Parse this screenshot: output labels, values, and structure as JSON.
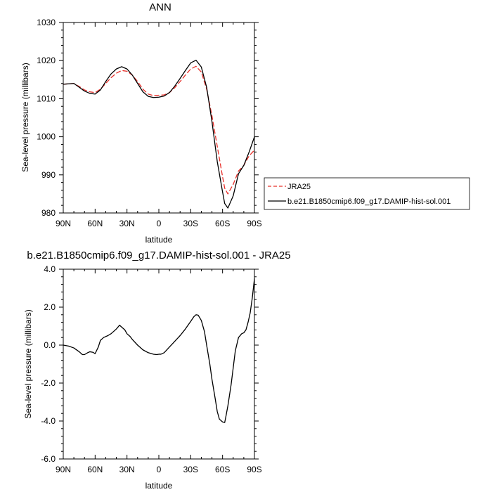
{
  "chart_data": [
    {
      "type": "line",
      "title": "ANN",
      "xlabel": "latitude",
      "ylabel": "Sea-level pressure (millibars)",
      "ylim": [
        980,
        1030
      ],
      "yticks": [
        980,
        990,
        1000,
        1010,
        1020,
        1030
      ],
      "ytick_labels": [
        "980",
        "990",
        "1000",
        "1010",
        "1020",
        "1030"
      ],
      "xlim": [
        90,
        -90
      ],
      "xticks": [
        90,
        60,
        30,
        0,
        -30,
        -60,
        -90
      ],
      "xtick_labels": [
        "90N",
        "60N",
        "30N",
        "0",
        "30S",
        "60S",
        "90S"
      ],
      "grid": false,
      "legend_position": "right",
      "series": [
        {
          "name": "JRA25",
          "color": "#e8302a",
          "dash": "dashed",
          "x": [
            90,
            80,
            75,
            70,
            65,
            60,
            55,
            50,
            45,
            40,
            35,
            30,
            25,
            20,
            15,
            10,
            5,
            0,
            -5,
            -10,
            -15,
            -20,
            -25,
            -30,
            -35,
            -40,
            -45,
            -50,
            -55,
            -60,
            -62,
            -65,
            -70,
            -75,
            -80,
            -85,
            -90
          ],
          "values": [
            1013.8,
            1014.0,
            1013.2,
            1012.3,
            1011.8,
            1011.6,
            1012.5,
            1014.0,
            1015.5,
            1016.7,
            1017.4,
            1017.2,
            1016.2,
            1014.5,
            1012.5,
            1011.2,
            1010.8,
            1010.9,
            1011.0,
            1011.6,
            1012.9,
            1014.5,
            1016.2,
            1017.8,
            1018.5,
            1017.0,
            1012.5,
            1005.5,
            997.5,
            989.5,
            986.5,
            985.0,
            987.5,
            991.0,
            992.5,
            995.0,
            996.5
          ]
        },
        {
          "name": "b.e21.B1850cmip6.f09_g17.DAMIP-hist-sol.001",
          "color": "#000000",
          "dash": "solid",
          "x": [
            90,
            80,
            75,
            70,
            65,
            60,
            55,
            50,
            45,
            40,
            35,
            30,
            25,
            20,
            15,
            10,
            5,
            0,
            -5,
            -10,
            -15,
            -20,
            -25,
            -30,
            -35,
            -40,
            -45,
            -50,
            -55,
            -60,
            -62,
            -65,
            -70,
            -75,
            -80,
            -85,
            -90
          ],
          "values": [
            1013.8,
            1014.0,
            1013.0,
            1012.0,
            1011.4,
            1011.2,
            1012.3,
            1014.5,
            1016.5,
            1017.8,
            1018.4,
            1017.8,
            1016.2,
            1014.0,
            1011.8,
            1010.6,
            1010.3,
            1010.4,
            1010.7,
            1011.6,
            1013.3,
            1015.3,
            1017.4,
            1019.4,
            1020.1,
            1018.3,
            1013.0,
            1004.0,
            993.5,
            985.5,
            982.5,
            981.3,
            984.5,
            990.3,
            992.5,
            996.0,
            1000.0
          ]
        }
      ]
    },
    {
      "type": "line",
      "title": "b.e21.B1850cmip6.f09_g17.DAMIP-hist-sol.001 - JRA25",
      "xlabel": "latitude",
      "ylabel": "Sea-level pressure (millibars)",
      "ylim": [
        -6,
        4
      ],
      "yticks": [
        -6,
        -4,
        -2,
        0,
        2,
        4
      ],
      "ytick_labels": [
        "-6.0",
        "-4.0",
        "-2.0",
        "0.0",
        "2.0",
        "4.0"
      ],
      "xlim": [
        90,
        -90
      ],
      "xticks": [
        90,
        60,
        30,
        0,
        -30,
        -60,
        -90
      ],
      "xtick_labels": [
        "90N",
        "60N",
        "30N",
        "0",
        "30S",
        "60S",
        "90S"
      ],
      "grid": false,
      "series": [
        {
          "name": "",
          "color": "#000000",
          "dash": "solid",
          "x": [
            90,
            85,
            80,
            75,
            72,
            70,
            67,
            65,
            62,
            60,
            57,
            55,
            52,
            48,
            45,
            40,
            37,
            35,
            32,
            30,
            27,
            25,
            20,
            15,
            10,
            5,
            2,
            0,
            -2,
            -5,
            -10,
            -15,
            -20,
            -25,
            -30,
            -33,
            -35,
            -37,
            -40,
            -43,
            -45,
            -48,
            -50,
            -53,
            -55,
            -57,
            -60,
            -62,
            -63,
            -65,
            -68,
            -70,
            -72,
            -75,
            -78,
            -80,
            -82,
            -84,
            -86,
            -88,
            -90
          ],
          "values": [
            0.0,
            -0.05,
            -0.15,
            -0.35,
            -0.5,
            -0.5,
            -0.4,
            -0.35,
            -0.38,
            -0.45,
            -0.1,
            0.25,
            0.4,
            0.5,
            0.6,
            0.85,
            1.05,
            0.95,
            0.8,
            0.6,
            0.45,
            0.3,
            0.0,
            -0.25,
            -0.4,
            -0.48,
            -0.5,
            -0.48,
            -0.48,
            -0.4,
            -0.1,
            0.2,
            0.5,
            0.85,
            1.25,
            1.5,
            1.6,
            1.58,
            1.3,
            0.7,
            0.0,
            -1.0,
            -1.8,
            -2.8,
            -3.5,
            -3.9,
            -4.05,
            -4.08,
            -3.8,
            -3.2,
            -2.1,
            -1.2,
            -0.3,
            0.4,
            0.6,
            0.65,
            0.8,
            1.2,
            1.7,
            2.5,
            3.5
          ]
        }
      ]
    }
  ]
}
